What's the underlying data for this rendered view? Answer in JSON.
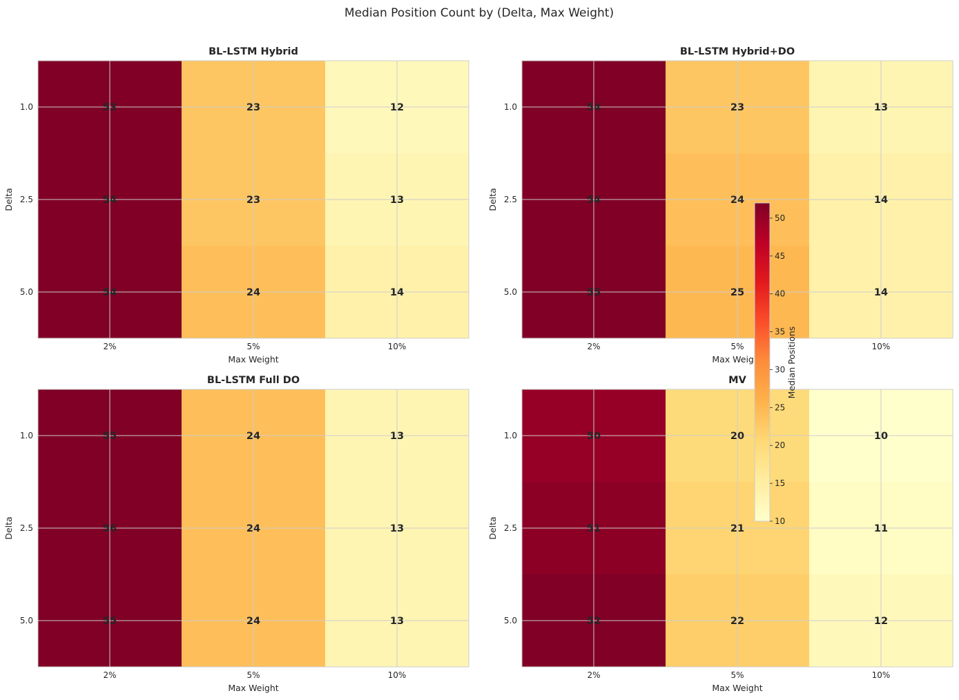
{
  "figure_title": "Median Position Count by (Delta, Max Weight)",
  "chart_data": [
    {
      "type": "heatmap",
      "title": "BL-LSTM Hybrid",
      "xlabel": "Max Weight",
      "ylabel": "Delta",
      "x_categories": [
        "2%",
        "5%",
        "10%"
      ],
      "y_categories": [
        "1.0",
        "2.5",
        "5.0"
      ],
      "values": [
        [
          53,
          23,
          12
        ],
        [
          54,
          23,
          13
        ],
        [
          54,
          24,
          14
        ]
      ],
      "grid": true
    },
    {
      "type": "heatmap",
      "title": "BL-LSTM Hybrid+DO",
      "xlabel": "Max Weight",
      "ylabel": "Delta",
      "x_categories": [
        "2%",
        "5%",
        "10%"
      ],
      "y_categories": [
        "1.0",
        "2.5",
        "5.0"
      ],
      "values": [
        [
          54,
          23,
          13
        ],
        [
          54,
          24,
          14
        ],
        [
          55,
          25,
          14
        ]
      ],
      "grid": true
    },
    {
      "type": "heatmap",
      "title": "BL-LSTM Full DO",
      "xlabel": "Max Weight",
      "ylabel": "Delta",
      "x_categories": [
        "2%",
        "5%",
        "10%"
      ],
      "y_categories": [
        "1.0",
        "2.5",
        "5.0"
      ],
      "values": [
        [
          55,
          24,
          13
        ],
        [
          56,
          24,
          13
        ],
        [
          55,
          24,
          13
        ]
      ],
      "grid": true
    },
    {
      "type": "heatmap",
      "title": "MV",
      "xlabel": "Max Weight",
      "ylabel": "Delta",
      "x_categories": [
        "2%",
        "5%",
        "10%"
      ],
      "y_categories": [
        "1.0",
        "2.5",
        "5.0"
      ],
      "values": [
        [
          50,
          20,
          10
        ],
        [
          51,
          21,
          11
        ],
        [
          52,
          22,
          12
        ]
      ],
      "grid": true
    }
  ],
  "colorbar": {
    "label": "Median Positions",
    "colormap": "YlOrRd",
    "vmin": 10,
    "vmax": 52,
    "ticks": [
      "10",
      "15",
      "20",
      "25",
      "30",
      "35",
      "40",
      "45",
      "50"
    ]
  },
  "colors": {
    "grid": "#cccccc",
    "spine": "#cccccc",
    "text": "#262626"
  }
}
